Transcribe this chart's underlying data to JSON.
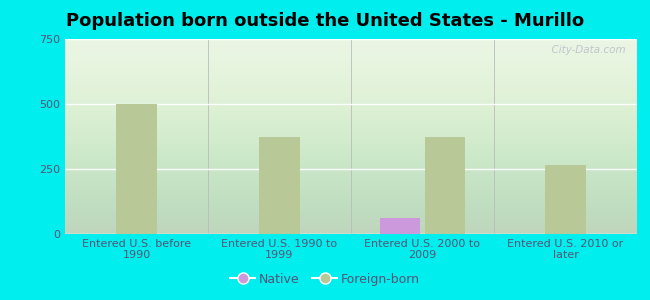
{
  "title": "Population born outside the United States - Murillo",
  "categories": [
    "Entered U.S. before\n1990",
    "Entered U.S. 1990 to\n1999",
    "Entered U.S. 2000 to\n2009",
    "Entered U.S. 2010 or\nlater"
  ],
  "native_values": [
    0,
    0,
    60,
    0
  ],
  "foreign_values": [
    500,
    375,
    375,
    265
  ],
  "native_color": "#cc99dd",
  "foreign_color": "#b8c896",
  "background_color": "#00eeee",
  "ylim": [
    0,
    750
  ],
  "yticks": [
    0,
    250,
    500,
    750
  ],
  "bar_width": 0.28,
  "title_fontsize": 13,
  "tick_fontsize": 8,
  "legend_labels": [
    "Native",
    "Foreign-born"
  ],
  "watermark": "  City-Data.com"
}
